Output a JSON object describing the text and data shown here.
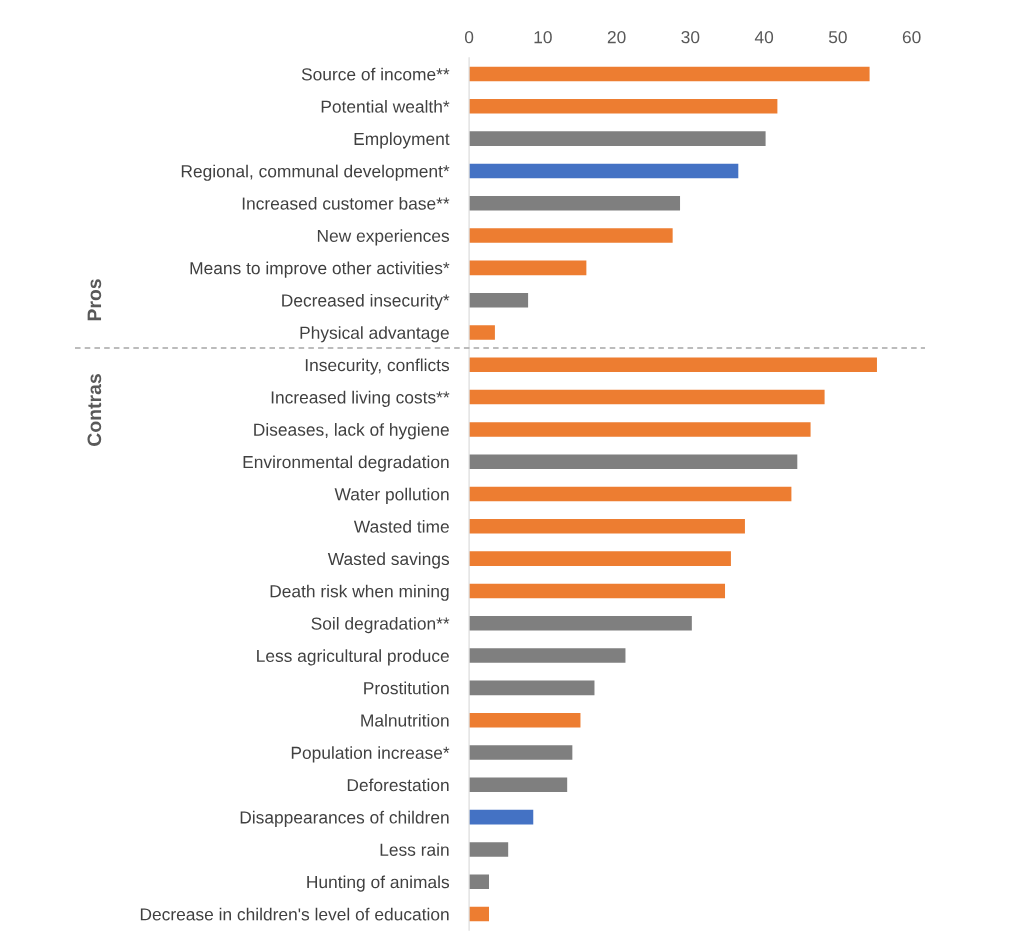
{
  "chart_data": {
    "type": "bar",
    "orientation": "horizontal",
    "categories": [
      "Source of income**",
      "Potential wealth*",
      "Employment",
      "Regional, communal development*",
      "Increased customer base**",
      "New experiences",
      "Means to improve other activities*",
      "Decreased insecurity*",
      "Physical advantage",
      "Insecurity, conflicts",
      "Increased living costs**",
      "Diseases, lack of hygiene",
      "Environmental degradation",
      "Water pollution",
      "Wasted time",
      "Wasted savings",
      "Death risk when mining",
      "Soil degradation**",
      "Less agricultural produce",
      "Prostitution",
      "Malnutrition",
      "Population increase*",
      "Deforestation",
      "Disappearances of children",
      "Less rain",
      "Hunting of animals",
      "Decrease in children's level of education"
    ],
    "values": [
      54.3,
      41.8,
      40.2,
      36.5,
      28.6,
      27.6,
      15.9,
      8.0,
      3.5,
      55.3,
      48.2,
      46.3,
      44.5,
      43.7,
      37.4,
      35.5,
      34.7,
      30.2,
      21.2,
      17.0,
      15.1,
      14.0,
      13.3,
      8.7,
      5.3,
      2.7,
      2.7
    ],
    "colors": [
      "#ed7d31",
      "#ed7d31",
      "#7f7f7f",
      "#4472c4",
      "#7f7f7f",
      "#ed7d31",
      "#ed7d31",
      "#7f7f7f",
      "#ed7d31",
      "#ed7d31",
      "#ed7d31",
      "#ed7d31",
      "#7f7f7f",
      "#ed7d31",
      "#ed7d31",
      "#ed7d31",
      "#ed7d31",
      "#7f7f7f",
      "#7f7f7f",
      "#7f7f7f",
      "#ed7d31",
      "#7f7f7f",
      "#7f7f7f",
      "#4472c4",
      "#7f7f7f",
      "#7f7f7f",
      "#ed7d31"
    ],
    "xlim": [
      0,
      60
    ],
    "xticks": [
      0,
      10,
      20,
      30,
      40,
      50,
      60
    ],
    "grid": false,
    "annotations": [
      "Pros",
      "Contras"
    ]
  }
}
